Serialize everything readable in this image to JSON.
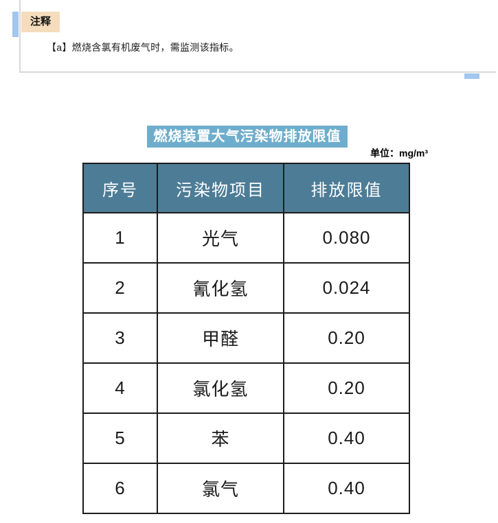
{
  "note": {
    "label": "注释",
    "text": "【a】燃烧含氯有机废气时，需监测该指标。"
  },
  "table": {
    "title": "燃烧装置大气污染物排放限值",
    "unit": "单位：mg/m³",
    "columns": [
      "序号",
      "污染物项目",
      "排放限值"
    ],
    "rows": [
      [
        "1",
        "光气",
        "0.080"
      ],
      [
        "2",
        "氰化氢",
        "0.024"
      ],
      [
        "3",
        "甲醛",
        "0.20"
      ],
      [
        "4",
        "氯化氢",
        "0.20"
      ],
      [
        "5",
        "苯",
        "0.40"
      ],
      [
        "6",
        "氯气",
        "0.40"
      ]
    ]
  },
  "colors": {
    "title_background": "#6fadcc",
    "header_background": "#4d7c96",
    "note_label_background": "#f5dcbc",
    "accent_blue": "#a3c6ee",
    "box_border": "#d8d8d8",
    "table_border": "#1c1c1c"
  }
}
